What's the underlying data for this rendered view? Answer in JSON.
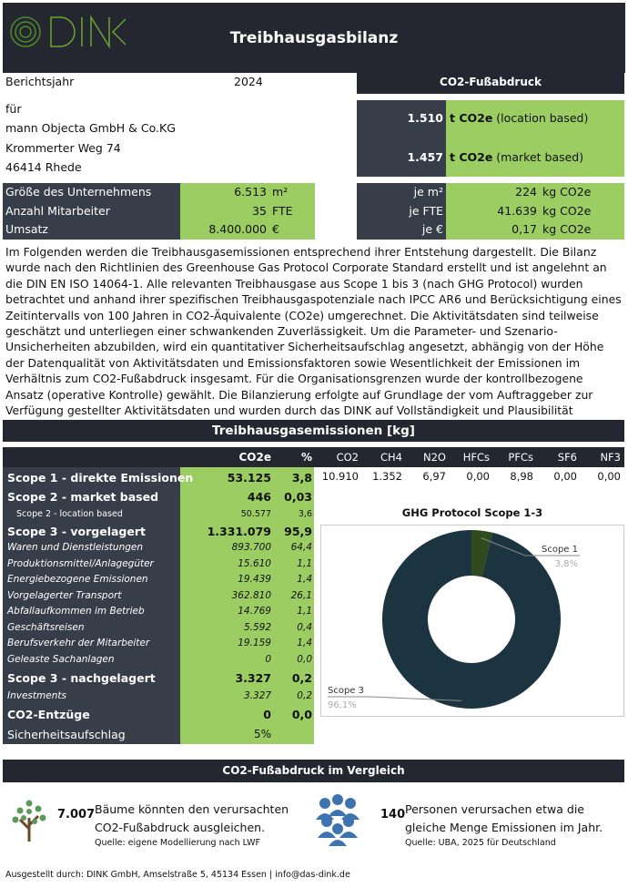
{
  "header": {
    "title": "Treibhausgasbilanz",
    "logo_text": "DINK"
  },
  "company": {
    "year_label": "Berichtsjahr",
    "year": "2024",
    "for_label": "für",
    "name": "mann Objecta GmbH & Co.KG",
    "street": "Krommerter Weg 74",
    "city": "46414 Rhede"
  },
  "metrics": [
    {
      "label": "Größe des Unternehmens",
      "value": "6.513",
      "unit": "m²"
    },
    {
      "label": "Anzahl Mitarbeiter",
      "value": "35",
      "unit": "FTE"
    },
    {
      "label": "Umsatz",
      "value": "8.400.000",
      "unit": "€"
    }
  ],
  "footprint": {
    "title": "CO2-Fußabdruck",
    "location_value": "1.510",
    "location_unit": "t CO2e",
    "location_note": "(location based)",
    "market_value": "1.457",
    "market_unit": "t CO2e",
    "market_note": "(market based)",
    "per": [
      {
        "label": "je m²",
        "value": "224",
        "unit": "kg CO2e"
      },
      {
        "label": "je FTE",
        "value": "41.639",
        "unit": "kg CO2e"
      },
      {
        "label": "je €",
        "value": "0,17",
        "unit": "kg CO2e"
      }
    ]
  },
  "intro": "Im Folgenden werden die Treibhausgasemissionen entsprechend ihrer Entstehung dargestellt. Die Bilanz wurde nach den Richtlinien des Greenhouse Gas Protocol Corporate Standard erstellt und ist angelehnt an die DIN EN ISO 14064-1. Alle relevanten Treibhausgase aus Scope 1 bis 3 (nach GHG Protocol) wurden betrachtet und anhand ihrer spezifischen Treibhausgaspotenziale nach IPCC AR6 und Berücksichtigung eines Zeitintervalls von 100 Jahren in CO2-Äquivalente (CO2e) umgerechnet. Die Aktivitätsdaten sind teilweise geschätzt und unterliegen einer schwankenden Zuverlässigkeit. Um die Parameter- und Szenario-Unsicherheiten abzubilden, wird ein quantitativer Sicherheitsaufschlag angesetzt, abhängig von der Höhe der Datenqualität von Aktivitätsdaten und Emissionsfaktoren sowie Wesentlichkeit der Emissionen im Verhältnis zum CO2-Fußabdruck insgesamt. Für die Organisationsgrenzen wurde der kontrollbezogene Ansatz (operative Kontrolle) gewählt. Die Bilanzierung erfolgte auf Grundlage der vom Auftraggeber zur Verfügung gestellter Aktivitätsdaten und wurden durch das DINK auf Vollständigkeit und Plausibilität überprüft.",
  "emissions": {
    "title": "Treibhausgasemissionen [kg]",
    "col_co2e": "CO2e",
    "col_pct": "%",
    "rows": [
      {
        "label": "Scope 1 - direkte Emissionen",
        "value": "53.125",
        "pct": "3,8",
        "style": "big"
      },
      {
        "label": "Scope 2 - market based",
        "value": "446",
        "pct": "0,03",
        "style": "big"
      },
      {
        "label": "Scope 2  -  location based",
        "value": "50.577",
        "pct": "3,6",
        "style": "sub"
      },
      {
        "label": "Scope 3 - vorgelagert",
        "value": "1.331.079",
        "pct": "95,9",
        "style": "big"
      },
      {
        "label": "Waren und Dienstleistungen",
        "value": "893.700",
        "pct": "64,4",
        "style": "it"
      },
      {
        "label": "Produktionsmittel/Anlagegüter",
        "value": "15.610",
        "pct": "1,1",
        "style": "it"
      },
      {
        "label": "Energiebezogene Emissionen",
        "value": "19.439",
        "pct": "1,4",
        "style": "it"
      },
      {
        "label": "Vorgelagerter Transport",
        "value": "362.810",
        "pct": "26,1",
        "style": "it"
      },
      {
        "label": "Abfallaufkommen im Betrieb",
        "value": "14.769",
        "pct": "1,1",
        "style": "it"
      },
      {
        "label": "Geschäftsreisen",
        "value": "5.592",
        "pct": "0,4",
        "style": "it"
      },
      {
        "label": "Berufsverkehr der Mitarbeiter",
        "value": "19.159",
        "pct": "1,4",
        "style": "it"
      },
      {
        "label": "Geleaste Sachanlagen",
        "value": "0",
        "pct": "0,0",
        "style": "it"
      },
      {
        "label": "Scope 3 - nachgelagert",
        "value": "3.327",
        "pct": "0,2",
        "style": "big"
      },
      {
        "label": "Investments",
        "value": "3.327",
        "pct": "0,2",
        "style": "it"
      },
      {
        "label": "CO2-Entzüge",
        "value": "0",
        "pct": "0,0",
        "style": "big"
      },
      {
        "label": "Sicherheitsaufschlag",
        "value": "5%",
        "pct": "",
        "style": "norm"
      }
    ],
    "gases": {
      "headers": [
        "CO2",
        "CH4",
        "N2O",
        "HFCs",
        "PFCs",
        "SF6",
        "NF3"
      ],
      "values": [
        "10.910",
        "1.352",
        "6,97",
        "0,00",
        "8,98",
        "0,00",
        "0,00"
      ]
    }
  },
  "chart_data": {
    "type": "pie",
    "title": "GHG Protocol Scope 1-3",
    "categories": [
      "Scope 1",
      "Scope 3"
    ],
    "values": [
      3.8,
      96.1
    ],
    "labels": [
      "3,8%",
      "96,1%"
    ],
    "colors": [
      "#2f4a1d",
      "#1c3340"
    ],
    "donut": true
  },
  "comparison": {
    "title": "CO2-Fußabdruck im Vergleich",
    "trees": {
      "icon": "tree-icon",
      "value": "7.007",
      "text": "Bäume könnten den verursachten CO2-Fußabdruck ausgleichen.",
      "source": "Quelle: eigene Modellierung nach LWF"
    },
    "people": {
      "icon": "people-group-icon",
      "value": "140",
      "text": "Personen verursachen etwa die gleiche Menge Emissionen im Jahr.",
      "source": "Quelle: UBA, 2025 für Deutschland"
    }
  },
  "footer": "Ausgestellt durch: DINK GmbH, Amselstraße 5, 45134 Essen | info@das-dink.de",
  "colors": {
    "dark": "#383d4a",
    "green": "#9ccd62",
    "header": "#24272f"
  }
}
